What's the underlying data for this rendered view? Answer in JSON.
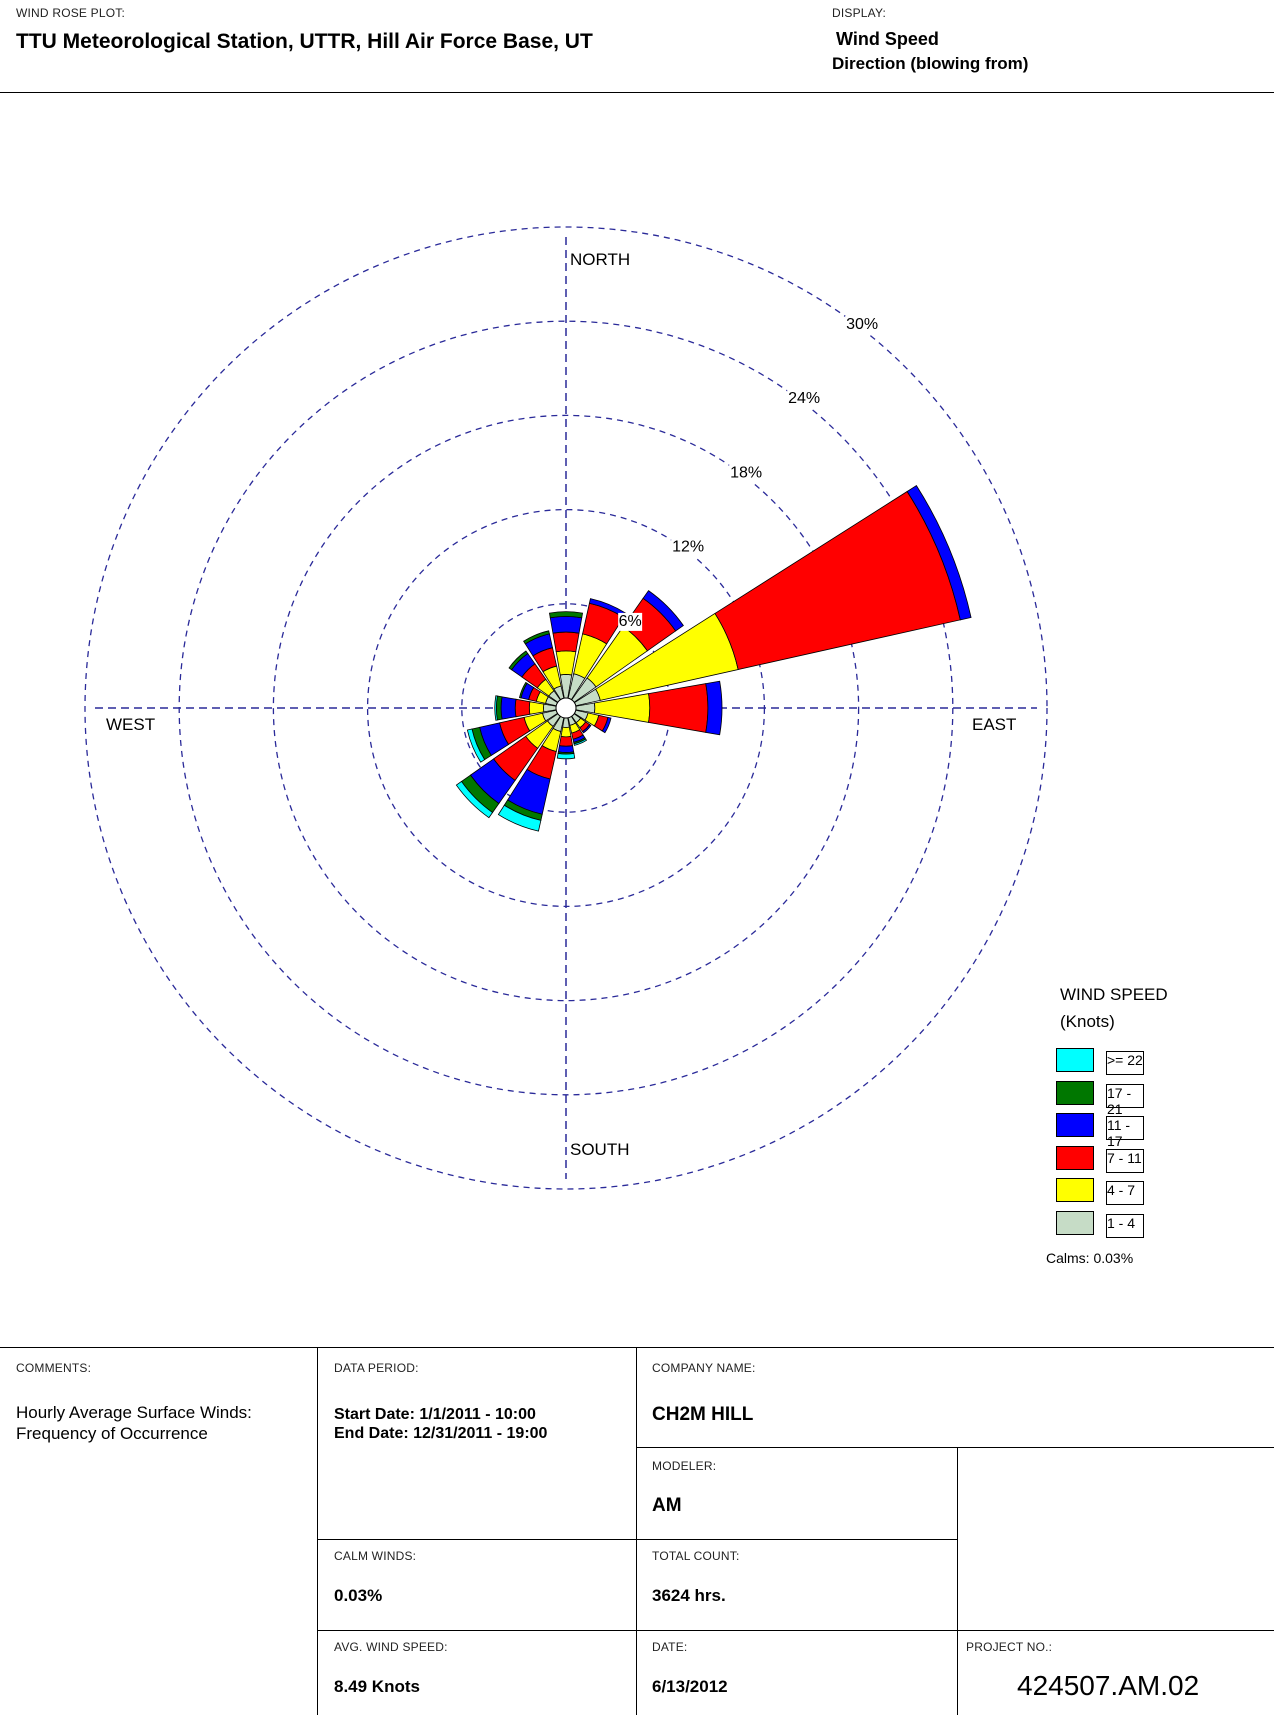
{
  "header": {
    "plot_label": "WIND ROSE PLOT:",
    "plot_title": "TTU Meteorological Station, UTTR, Hill Air Force Base, UT",
    "display_label": "DISPLAY:",
    "display_value_1": "Wind Speed",
    "display_value_2": "Direction (blowing from)"
  },
  "chart_data": {
    "type": "wind-rose",
    "directions": [
      "N",
      "NNE",
      "NE",
      "ENE",
      "E",
      "ESE",
      "SE",
      "SSE",
      "S",
      "SSW",
      "SW",
      "WSW",
      "W",
      "WNW",
      "NW",
      "NNW"
    ],
    "ring_values": [
      6,
      12,
      18,
      24,
      30
    ],
    "ring_labels": [
      "6%",
      "12%",
      "18%",
      "24%",
      "30%"
    ],
    "compass_labels": {
      "north": "NORTH",
      "south": "SOUTH",
      "east": "EAST",
      "west": "WEST"
    },
    "legend_title": "WIND SPEED",
    "legend_units": "(Knots)",
    "series": [
      {
        "name": "1 - 4",
        "color": "#c6dcc6",
        "values": [
          1.5,
          1.6,
          1.7,
          1.6,
          1.2,
          0.8,
          0.5,
          0.5,
          0.6,
          0.9,
          0.8,
          0.9,
          0.8,
          0.7,
          0.7,
          0.8
        ]
      },
      {
        "name": "4 - 7",
        "color": "#ffff00",
        "values": [
          1.5,
          2.6,
          4.0,
          9.0,
          3.5,
          0.7,
          0.4,
          0.5,
          0.6,
          1.3,
          1.7,
          1.2,
          0.9,
          0.6,
          0.9,
          1.3
        ]
      },
      {
        "name": "7 - 11",
        "color": "#ff0000",
        "values": [
          1.2,
          2.0,
          2.2,
          14.5,
          3.7,
          0.6,
          0.3,
          0.4,
          0.6,
          1.8,
          2.5,
          1.6,
          0.9,
          0.5,
          1.2,
          1.2
        ]
      },
      {
        "name": "11 - 17",
        "color": "#0000ff",
        "values": [
          1.0,
          0.3,
          0.6,
          0.7,
          0.9,
          0.2,
          0.1,
          0.2,
          0.4,
          2.3,
          1.8,
          1.3,
          0.9,
          0.5,
          0.8,
          0.9
        ]
      },
      {
        "name": "17 - 21",
        "color": "#007700",
        "values": [
          0.3,
          0.0,
          0.0,
          0.0,
          0.0,
          0.0,
          0.0,
          0.1,
          0.1,
          0.4,
          0.7,
          0.5,
          0.3,
          0.1,
          0.2,
          0.2
        ]
      },
      {
        "name": ">= 22",
        "color": "#00ffff",
        "values": [
          0.0,
          0.0,
          0.0,
          0.0,
          0.0,
          0.0,
          0.0,
          0.1,
          0.3,
          0.7,
          0.4,
          0.3,
          0.1,
          0.0,
          0.0,
          0.0
        ]
      }
    ],
    "calms_text": "Calms: 0.03%"
  },
  "footer": {
    "comments_label": "COMMENTS:",
    "comments_1": "Hourly Average Surface Winds:",
    "comments_2": "Frequency of Occurrence",
    "data_period_label": "DATA PERIOD:",
    "start_date": "Start Date: 1/1/2011 - 10:00",
    "end_date": "End Date: 12/31/2011 - 19:00",
    "company_label": "COMPANY NAME:",
    "company_value": "CH2M HILL",
    "modeler_label": "MODELER:",
    "modeler_value": "AM",
    "calm_label": "CALM WINDS:",
    "calm_value": "0.03%",
    "total_label": "TOTAL COUNT:",
    "total_value": "3624 hrs.",
    "avg_label": "AVG. WIND SPEED:",
    "avg_value": "8.49 Knots",
    "date_label": "DATE:",
    "date_value": "6/13/2012",
    "project_label": "PROJECT NO.:",
    "project_value": "424507.AM.02"
  }
}
